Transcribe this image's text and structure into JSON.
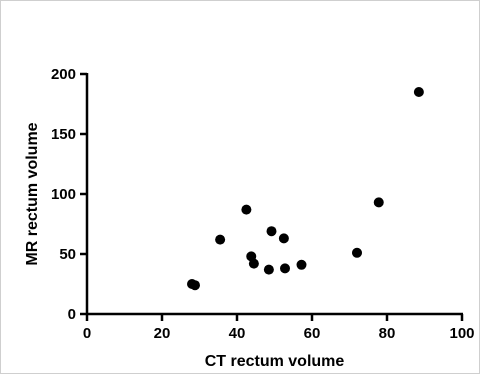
{
  "chart_data": {
    "type": "scatter",
    "xlabel": "CT rectum volume",
    "ylabel": "MR rectum volume",
    "xlim": [
      0,
      100
    ],
    "ylim": [
      0,
      200
    ],
    "x_ticks": [
      0,
      20,
      40,
      60,
      80,
      100
    ],
    "y_ticks": [
      0,
      50,
      100,
      150,
      200
    ],
    "x_tick_labels": [
      "0",
      "20",
      "40",
      "60",
      "80",
      "100"
    ],
    "y_tick_labels": [
      "0",
      "50",
      "100",
      "150",
      "200"
    ],
    "grid": false,
    "point_color": "#000000",
    "points": [
      {
        "x": 28.0,
        "y": 25
      },
      {
        "x": 28.8,
        "y": 24
      },
      {
        "x": 35.5,
        "y": 62
      },
      {
        "x": 42.5,
        "y": 87
      },
      {
        "x": 43.8,
        "y": 48
      },
      {
        "x": 44.5,
        "y": 42
      },
      {
        "x": 48.5,
        "y": 37
      },
      {
        "x": 49.2,
        "y": 69
      },
      {
        "x": 52.5,
        "y": 63
      },
      {
        "x": 52.8,
        "y": 38
      },
      {
        "x": 57.2,
        "y": 41
      },
      {
        "x": 72.0,
        "y": 51
      },
      {
        "x": 77.8,
        "y": 93
      },
      {
        "x": 88.5,
        "y": 185
      }
    ]
  }
}
